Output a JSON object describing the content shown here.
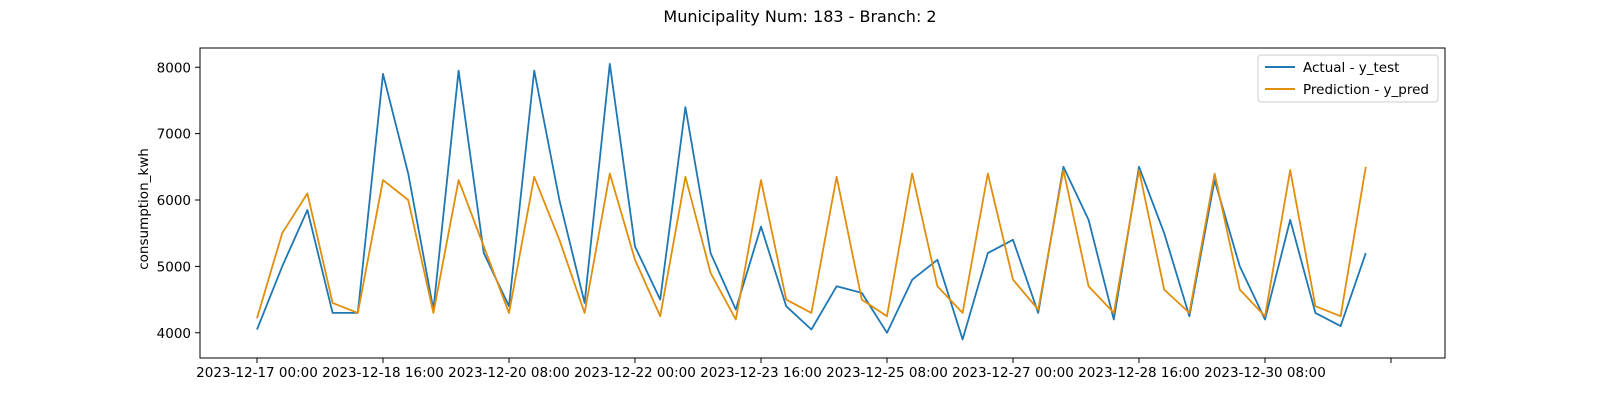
{
  "chart_data": {
    "type": "line",
    "title": "Municipality Num: 183 - Branch: 2",
    "xlabel": "",
    "ylabel": "consumption_kwh",
    "x_ticks": [
      "2023-12-17 00:00",
      "2023-12-18 16:00",
      "2023-12-20 08:00",
      "2023-12-22 00:00",
      "2023-12-23 16:00",
      "2023-12-25 08:00",
      "2023-12-27 00:00",
      "2023-12-28 16:00",
      "2023-12-30 08:00",
      ""
    ],
    "y_ticks": [
      4000,
      5000,
      6000,
      7000,
      8000
    ],
    "ylim": [
      3620,
      8290
    ],
    "grid": false,
    "legend_position": "upper right",
    "series": [
      {
        "name": "Actual - y_test",
        "color": "#1f77b4",
        "x": [
          "2023-12-17 00:00",
          "2023-12-17 08:00",
          "2023-12-17 16:00",
          "2023-12-18 00:00",
          "2023-12-18 08:00",
          "2023-12-18 16:00",
          "2023-12-19 00:00",
          "2023-12-19 08:00",
          "2023-12-19 16:00",
          "2023-12-20 00:00",
          "2023-12-20 08:00",
          "2023-12-20 16:00",
          "2023-12-21 00:00",
          "2023-12-21 08:00",
          "2023-12-21 16:00",
          "2023-12-22 00:00",
          "2023-12-22 08:00",
          "2023-12-22 16:00",
          "2023-12-23 00:00",
          "2023-12-23 08:00",
          "2023-12-23 16:00",
          "2023-12-24 00:00",
          "2023-12-24 08:00",
          "2023-12-24 16:00",
          "2023-12-25 00:00",
          "2023-12-25 08:00",
          "2023-12-25 16:00",
          "2023-12-26 00:00",
          "2023-12-26 08:00",
          "2023-12-26 16:00",
          "2023-12-27 00:00",
          "2023-12-27 08:00",
          "2023-12-27 16:00",
          "2023-12-28 00:00",
          "2023-12-28 08:00",
          "2023-12-28 16:00",
          "2023-12-29 00:00",
          "2023-12-29 08:00",
          "2023-12-29 16:00",
          "2023-12-30 00:00",
          "2023-12-30 08:00",
          "2023-12-30 16:00",
          "2023-12-31 00:00",
          "2023-12-31 08:00",
          "2023-12-31 16:00"
        ],
        "values": [
          4050,
          5000,
          5850,
          4300,
          4300,
          7900,
          6400,
          4350,
          7950,
          5200,
          4400,
          7950,
          6000,
          4450,
          8050,
          5300,
          4500,
          7400,
          5200,
          4350,
          5600,
          4400,
          4050,
          4700,
          4600,
          4000,
          4800,
          5100,
          3900,
          5200,
          5400,
          4300,
          6500,
          5700,
          4200,
          6500,
          5500,
          4250,
          6300,
          5000,
          4200,
          5700,
          4300,
          4100,
          5200
        ]
      },
      {
        "name": "Prediction - y_pred",
        "color": "#e08e0b",
        "x": [
          "2023-12-17 00:00",
          "2023-12-17 08:00",
          "2023-12-17 16:00",
          "2023-12-18 00:00",
          "2023-12-18 08:00",
          "2023-12-18 16:00",
          "2023-12-19 00:00",
          "2023-12-19 08:00",
          "2023-12-19 16:00",
          "2023-12-20 00:00",
          "2023-12-20 08:00",
          "2023-12-20 16:00",
          "2023-12-21 00:00",
          "2023-12-21 08:00",
          "2023-12-21 16:00",
          "2023-12-22 00:00",
          "2023-12-22 08:00",
          "2023-12-22 16:00",
          "2023-12-23 00:00",
          "2023-12-23 08:00",
          "2023-12-23 16:00",
          "2023-12-24 00:00",
          "2023-12-24 08:00",
          "2023-12-24 16:00",
          "2023-12-25 00:00",
          "2023-12-25 08:00",
          "2023-12-25 16:00",
          "2023-12-26 00:00",
          "2023-12-26 08:00",
          "2023-12-26 16:00",
          "2023-12-27 00:00",
          "2023-12-27 08:00",
          "2023-12-27 16:00",
          "2023-12-28 00:00",
          "2023-12-28 08:00",
          "2023-12-28 16:00",
          "2023-12-29 00:00",
          "2023-12-29 08:00",
          "2023-12-29 16:00",
          "2023-12-30 00:00",
          "2023-12-30 08:00",
          "2023-12-30 16:00",
          "2023-12-31 00:00",
          "2023-12-31 08:00",
          "2023-12-31 16:00"
        ],
        "values": [
          4220,
          5500,
          6100,
          4450,
          4300,
          6300,
          6000,
          4300,
          6300,
          5300,
          4300,
          6350,
          5400,
          4300,
          6400,
          5100,
          4250,
          6350,
          4900,
          4200,
          6300,
          4500,
          4300,
          6350,
          4500,
          4250,
          6400,
          4700,
          4300,
          6400,
          4800,
          4350,
          6450,
          4700,
          4300,
          6450,
          4650,
          4300,
          6400,
          4650,
          4250,
          6450,
          4400,
          4250,
          6500
        ]
      }
    ]
  }
}
